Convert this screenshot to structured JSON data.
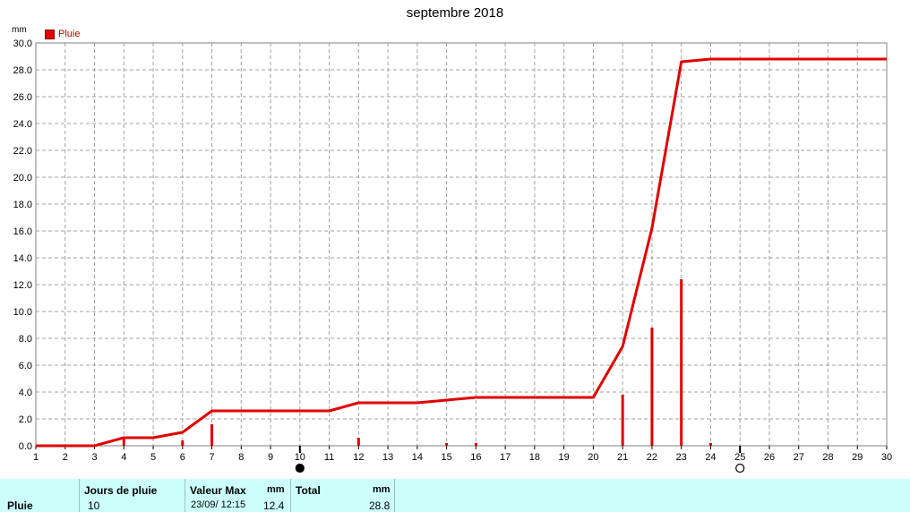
{
  "chart_data": {
    "type": "bar+line",
    "title": "septembre 2018",
    "ylabel": "mm",
    "xlim": [
      1,
      30
    ],
    "ylim": [
      0,
      30
    ],
    "x_ticks": [
      1,
      2,
      3,
      4,
      5,
      6,
      7,
      8,
      9,
      10,
      11,
      12,
      13,
      14,
      15,
      16,
      17,
      18,
      19,
      20,
      21,
      22,
      23,
      24,
      25,
      26,
      27,
      28,
      29,
      30
    ],
    "y_ticks": [
      "0.0",
      "2.0",
      "4.0",
      "6.0",
      "8.0",
      "10.0",
      "12.0",
      "14.0",
      "16.0",
      "18.0",
      "20.0",
      "22.0",
      "24.0",
      "26.0",
      "28.0",
      "30.0"
    ],
    "grid": true,
    "legend": {
      "position": "top-left",
      "entries": [
        "Pluie"
      ]
    },
    "colors": {
      "rain": "#e00000",
      "grid": "#a0a0a0"
    },
    "series": [
      {
        "name": "Pluie",
        "kind": "bar",
        "points": [
          {
            "x": 4,
            "y": 0.6
          },
          {
            "x": 6,
            "y": 0.4
          },
          {
            "x": 7,
            "y": 1.6
          },
          {
            "x": 12,
            "y": 0.6
          },
          {
            "x": 15,
            "y": 0.2
          },
          {
            "x": 16,
            "y": 0.2
          },
          {
            "x": 21,
            "y": 3.8
          },
          {
            "x": 22,
            "y": 8.8
          },
          {
            "x": 23,
            "y": 12.4
          },
          {
            "x": 24,
            "y": 0.2
          }
        ]
      },
      {
        "kind": "line",
        "points": [
          {
            "x": 1,
            "y": 0
          },
          {
            "x": 3,
            "y": 0
          },
          {
            "x": 4,
            "y": 0.6
          },
          {
            "x": 5,
            "y": 0.6
          },
          {
            "x": 6,
            "y": 1.0
          },
          {
            "x": 7,
            "y": 2.6
          },
          {
            "x": 11,
            "y": 2.6
          },
          {
            "x": 12,
            "y": 3.2
          },
          {
            "x": 14,
            "y": 3.2
          },
          {
            "x": 15,
            "y": 3.4
          },
          {
            "x": 16,
            "y": 3.6
          },
          {
            "x": 20,
            "y": 3.6
          },
          {
            "x": 21,
            "y": 7.4
          },
          {
            "x": 22,
            "y": 16.2
          },
          {
            "x": 23,
            "y": 28.6
          },
          {
            "x": 24,
            "y": 28.8
          },
          {
            "x": 30,
            "y": 28.8
          }
        ]
      }
    ],
    "moon_phases": [
      {
        "x": 10,
        "phase": "new"
      },
      {
        "x": 25,
        "phase": "full"
      }
    ]
  },
  "summary": {
    "row_label": "Pluie",
    "jours_header": "Jours de pluie",
    "jours_value": "10",
    "valeur_header": "Valeur Max",
    "valeur_unit": "mm",
    "valeur_date": "23/09/  12:15",
    "valeur_value": "12.4",
    "total_header": "Total",
    "total_unit": "mm",
    "total_value": "28.8"
  }
}
